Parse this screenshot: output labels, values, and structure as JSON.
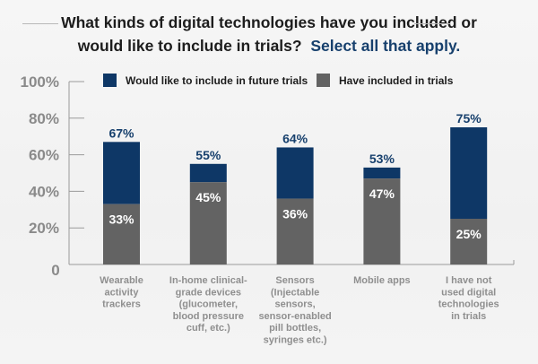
{
  "title": {
    "line1": "What kinds of digital technologies have you included or",
    "line2": "would like to include in trials?",
    "accent": "Select all that apply."
  },
  "colors": {
    "would_like": "#0e3766",
    "have_included": "#636363",
    "axis": "#9a9a9a"
  },
  "chart_data": {
    "type": "bar",
    "stacked": true,
    "title": "What kinds of digital technologies have you included or would like to include in trials? Select all that apply.",
    "xlabel": "",
    "ylabel": "",
    "ylim": [
      0,
      100
    ],
    "yticks": [
      0,
      20,
      40,
      60,
      80,
      100
    ],
    "ytick_labels": [
      "0",
      "20%",
      "40%",
      "60%",
      "80%",
      "100%"
    ],
    "grid": false,
    "legend_position": "top",
    "categories": [
      [
        "Wearable",
        "activity",
        "trackers"
      ],
      [
        "In-home clinical-",
        "grade devices",
        "(glucometer,",
        "blood pressure",
        "cuff, etc.)"
      ],
      [
        "Sensors",
        "(Injectable",
        "sensors,",
        "sensor-enabled",
        "pill bottles,",
        "syringes etc.)"
      ],
      [
        "Mobile apps"
      ],
      [
        "I have not",
        "used digital",
        "technologies",
        "in trials"
      ]
    ],
    "series": [
      {
        "name": "Would like to include in future trials",
        "values": [
          67,
          55,
          64,
          53,
          75
        ],
        "labels": [
          "67%",
          "55%",
          "64%",
          "53%",
          "75%"
        ]
      },
      {
        "name": "Have included in trials",
        "values": [
          33,
          45,
          36,
          47,
          25
        ],
        "labels": [
          "33%",
          "45%",
          "36%",
          "47%",
          "25%"
        ]
      }
    ]
  }
}
